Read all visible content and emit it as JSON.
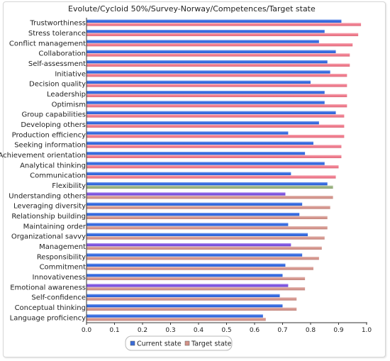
{
  "chart_data": {
    "type": "bar",
    "orientation": "horizontal",
    "title": "Evolute/Cycloid 50%/Survey-Norway/Competences/Target state",
    "categories": [
      "Trustworthiness",
      "Stress tolerance",
      "Conflict management",
      "Collaboration",
      "Self-assessment",
      "Initiative",
      "Decision quality",
      "Leadership",
      "Optimism",
      "Group capabilities",
      "Developing others",
      "Production efficiency",
      "Seeking information",
      "Achievement orientation",
      "Analytical thinking",
      "Communication",
      "Flexibility",
      "Understanding others",
      "Leveraging diversity",
      "Relationship building",
      "Maintaining order",
      "Organizational savvy",
      "Management",
      "Responsibility",
      "Commitment",
      "Innovativeness",
      "Emotional awareness",
      "Self-confidence",
      "Conceptual thinking",
      "Language proficiency"
    ],
    "series": [
      {
        "name": "Current state",
        "values": [
          0.91,
          0.85,
          0.83,
          0.89,
          0.86,
          0.87,
          0.8,
          0.85,
          0.85,
          0.89,
          0.83,
          0.72,
          0.81,
          0.78,
          0.85,
          0.73,
          0.86,
          0.71,
          0.77,
          0.76,
          0.72,
          0.79,
          0.73,
          0.77,
          0.71,
          0.7,
          0.72,
          0.69,
          0.7,
          0.63
        ]
      },
      {
        "name": "Target state",
        "values": [
          0.98,
          0.97,
          0.95,
          0.94,
          0.94,
          0.93,
          0.93,
          0.93,
          0.93,
          0.92,
          0.92,
          0.92,
          0.91,
          0.91,
          0.9,
          0.89,
          0.88,
          0.88,
          0.87,
          0.86,
          0.86,
          0.85,
          0.84,
          0.83,
          0.81,
          0.78,
          0.78,
          0.75,
          0.75,
          0.64
        ]
      }
    ],
    "bar_colors": {
      "current": [
        "#2f66e0",
        "#2f66e0",
        "#2f66e0",
        "#2f66e0",
        "#2f66e0",
        "#2f66e0",
        "#2f66e0",
        "#2f66e0",
        "#2f66e0",
        "#2f66e0",
        "#2f66e0",
        "#2f66e0",
        "#2f66e0",
        "#2f66e0",
        "#2f66e0",
        "#2f66e0",
        "#2f66e0",
        "#7a4fe0",
        "#2f66e0",
        "#2f66e0",
        "#2f66e0",
        "#2f66e0",
        "#7a4fe0",
        "#2f66e0",
        "#2f66e0",
        "#2f66e0",
        "#7a4fe0",
        "#2f66e0",
        "#2f66e0",
        "#2f66e0"
      ],
      "target": [
        "#f0788a",
        "#f0788a",
        "#f0788a",
        "#f0788a",
        "#f0788a",
        "#f0788a",
        "#f0788a",
        "#f0788a",
        "#f0788a",
        "#f0788a",
        "#f0788a",
        "#f0788a",
        "#f0788a",
        "#f0788a",
        "#f0788a",
        "#f0788a",
        "#96b07c",
        "#d4938a",
        "#d4938a",
        "#d4938a",
        "#d4938a",
        "#d4938a",
        "#d4938a",
        "#d4938a",
        "#d4938a",
        "#d4938a",
        "#d4938a",
        "#d4938a",
        "#d4938a",
        "#d4938a"
      ]
    },
    "xlim": [
      0,
      1.0
    ],
    "xticks": [
      "0.0",
      "0.1",
      "0.2",
      "0.3",
      "0.4",
      "0.5",
      "0.6",
      "0.7",
      "0.8",
      "0.9",
      "1.0"
    ],
    "grid": false,
    "legend_position": "bottom",
    "legend_colors": {
      "current": "#3a6cd8",
      "target": "#d4938a"
    }
  }
}
